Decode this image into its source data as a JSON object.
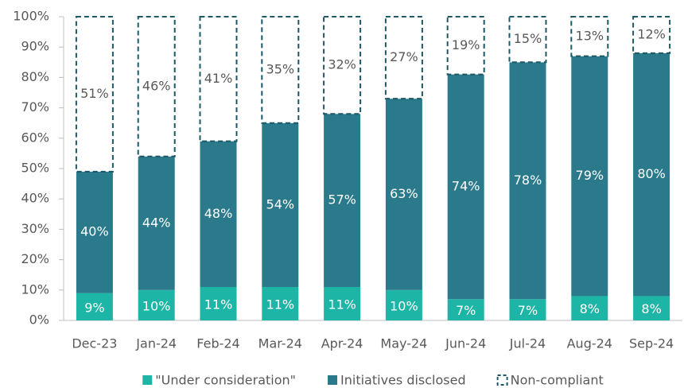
{
  "chart_data": {
    "type": "stacked_bar",
    "categories": [
      "Dec-23",
      "Jan-24",
      "Feb-24",
      "Mar-24",
      "Apr-24",
      "May-24",
      "Jun-24",
      "Jul-24",
      "Aug-24",
      "Sep-24"
    ],
    "series": [
      {
        "name": "\"Under consideration\"",
        "color": "#1db5a5",
        "values": [
          9,
          10,
          11,
          11,
          11,
          10,
          7,
          7,
          8,
          8
        ],
        "value_labels": [
          "9%",
          "10%",
          "11%",
          "11%",
          "11%",
          "10%",
          "7%",
          "7%",
          "8%",
          "8%"
        ]
      },
      {
        "name": "Initiatives disclosed",
        "color": "#2a7a8c",
        "values": [
          40,
          44,
          48,
          54,
          57,
          63,
          74,
          78,
          79,
          80
        ],
        "value_labels": [
          "40%",
          "44%",
          "48%",
          "54%",
          "57%",
          "63%",
          "74%",
          "78%",
          "79%",
          "80%"
        ]
      },
      {
        "name": "Non-compliant",
        "color": "#1d5866",
        "dashed": true,
        "values": [
          51,
          46,
          41,
          35,
          32,
          27,
          19,
          15,
          13,
          12
        ],
        "value_labels": [
          "51%",
          "46%",
          "41%",
          "35%",
          "32%",
          "27%",
          "19%",
          "15%",
          "13%",
          "12%"
        ]
      }
    ],
    "ylim": [
      0,
      100
    ],
    "yticks": [
      {
        "value": 0,
        "label": "0%"
      },
      {
        "value": 10,
        "label": "10%"
      },
      {
        "value": 20,
        "label": "20%"
      },
      {
        "value": 30,
        "label": "30%"
      },
      {
        "value": 40,
        "label": "40%"
      },
      {
        "value": 50,
        "label": "50%"
      },
      {
        "value": 60,
        "label": "60%"
      },
      {
        "value": 70,
        "label": "70%"
      },
      {
        "value": 80,
        "label": "80%"
      },
      {
        "value": 90,
        "label": "90%"
      },
      {
        "value": 100,
        "label": "100%"
      }
    ],
    "legend": "bottom"
  }
}
